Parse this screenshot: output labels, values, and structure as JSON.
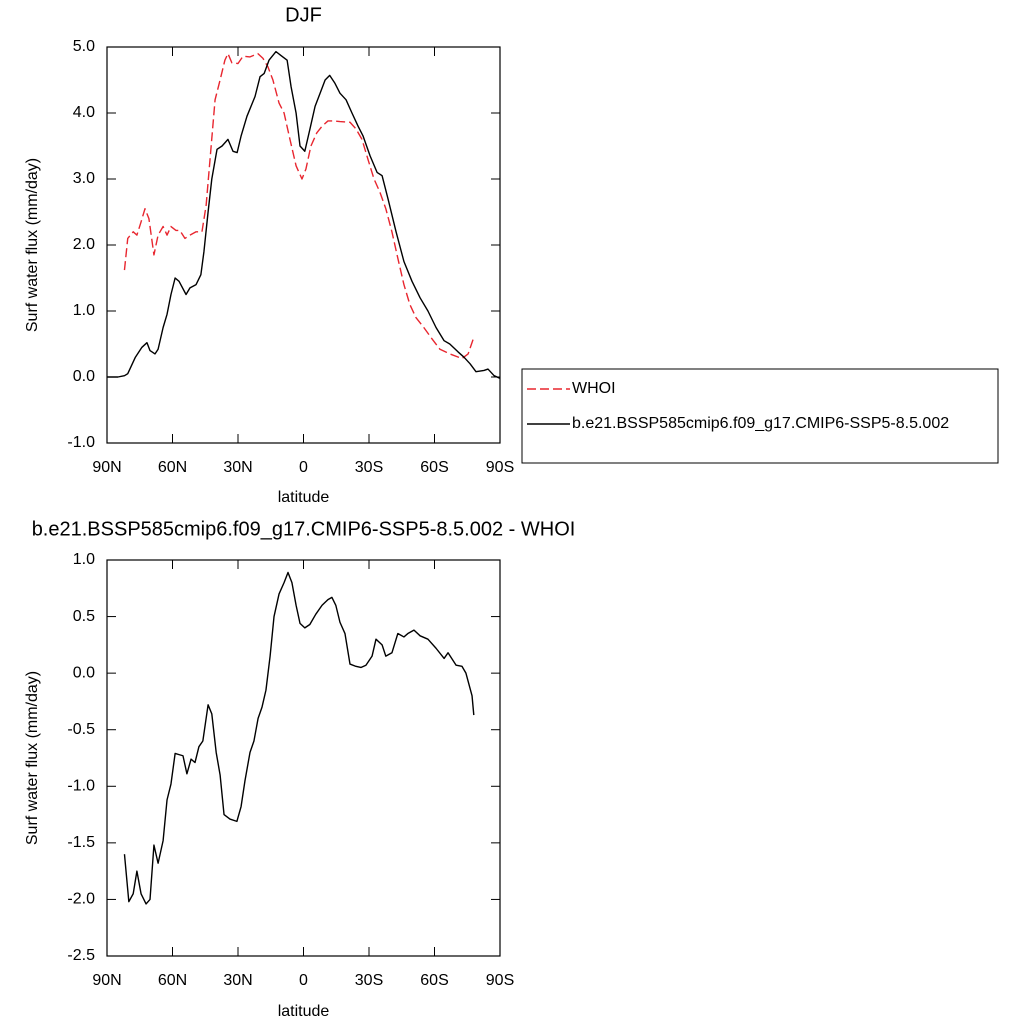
{
  "chart_data": [
    {
      "type": "line",
      "title": "DJF",
      "xlabel": "latitude",
      "ylabel": "Surf water flux (mm/day)",
      "xlim": [
        90,
        -90
      ],
      "xticks": [
        {
          "value": 90,
          "label": "90N"
        },
        {
          "value": 60,
          "label": "60N"
        },
        {
          "value": 30,
          "label": "30N"
        },
        0,
        {
          "value": -30,
          "label": "30S"
        },
        {
          "value": -60,
          "label": "60S"
        },
        {
          "value": -90,
          "label": "90S"
        }
      ],
      "ylim": [
        -1,
        5
      ],
      "yticks": [
        {
          "value": 5,
          "label": "5.0"
        },
        {
          "value": 4,
          "label": "4.0"
        },
        {
          "value": 3,
          "label": "3.0"
        },
        {
          "value": 2,
          "label": "2.0"
        },
        {
          "value": 1,
          "label": "1.0"
        },
        {
          "value": 0,
          "label": "0.0"
        },
        {
          "value": -1,
          "label": "-1.0"
        }
      ],
      "legend": "right",
      "series": [
        {
          "name": "WHOI",
          "color": "#e8262f",
          "dashed": true,
          "x": [
            82,
            80.5,
            78,
            76.3,
            74.4,
            72.6,
            70.8,
            68.5,
            66.6,
            64.3,
            62.5,
            60.7,
            58.4,
            56.6,
            54.3,
            52,
            49.2,
            46.5,
            44.6,
            42.8,
            40.5,
            38.2,
            36,
            34.6,
            32.8,
            30,
            27.7,
            24.5,
            20.9,
            18.6,
            16.3,
            14,
            11.2,
            8.9,
            6.2,
            3.4,
            0.7,
            -1.1,
            -3.4,
            -6.1,
            -8.5,
            -11.2,
            -13.9,
            -16.7,
            -21.3,
            -24,
            -26.8,
            -29.5,
            -32.3,
            -35,
            -37.7,
            -40.5,
            -43.2,
            -46,
            -48.7,
            -51.5,
            -55.1,
            -58.8,
            -62.5,
            -67,
            -72.6,
            -75.4,
            -78
          ],
          "values": [
            1.62,
            2.1,
            2.2,
            2.15,
            2.35,
            2.55,
            2.4,
            1.85,
            2.15,
            2.28,
            2.15,
            2.28,
            2.22,
            2.22,
            2.1,
            2.15,
            2.2,
            2.2,
            2.6,
            3.3,
            4.2,
            4.5,
            4.8,
            4.9,
            4.76,
            4.75,
            4.86,
            4.85,
            4.9,
            4.83,
            4.7,
            4.5,
            4.15,
            4.0,
            3.6,
            3.2,
            3.0,
            3.15,
            3.5,
            3.7,
            3.8,
            3.88,
            3.88,
            3.87,
            3.86,
            3.76,
            3.6,
            3.3,
            3.0,
            2.8,
            2.55,
            2.2,
            1.8,
            1.4,
            1.1,
            0.9,
            0.75,
            0.58,
            0.42,
            0.35,
            0.28,
            0.35,
            0.6
          ]
        },
        {
          "name": "b.e21.BSSP585cmip6.f09_g17.CMIP6-SSP5-8.5.002",
          "color": "#000000",
          "dashed": false,
          "x": [
            90,
            85,
            82,
            80.5,
            77,
            74,
            71.7,
            70.3,
            68,
            66.6,
            64.3,
            62.5,
            60.7,
            58.8,
            57,
            53.8,
            52,
            49.2,
            47,
            45.6,
            43.7,
            42,
            39.6,
            37.3,
            34.6,
            32.3,
            30.4,
            28.6,
            25.9,
            22.2,
            19.9,
            18,
            15.8,
            12.6,
            10.3,
            7.5,
            5.7,
            3.4,
            1.6,
            -0.6,
            -2.9,
            -5.3,
            -7.6,
            -9.9,
            -12,
            -14.4,
            -16.7,
            -19.5,
            -22.2,
            -25,
            -27.3,
            -30.5,
            -33.7,
            -36,
            -38.7,
            -42.4,
            -46,
            -49.7,
            -53.4,
            -57,
            -60.7,
            -64.4,
            -67,
            -70.8,
            -73.5,
            -76.3,
            -79,
            -82.7,
            -84.5,
            -87.3,
            -90
          ],
          "values": [
            0,
            0,
            0.02,
            0.05,
            0.3,
            0.45,
            0.52,
            0.4,
            0.35,
            0.42,
            0.75,
            0.95,
            1.25,
            1.5,
            1.45,
            1.25,
            1.35,
            1.4,
            1.55,
            1.9,
            2.5,
            3.0,
            3.45,
            3.5,
            3.6,
            3.42,
            3.4,
            3.65,
            3.95,
            4.25,
            4.55,
            4.6,
            4.8,
            4.93,
            4.87,
            4.8,
            4.4,
            4.0,
            3.5,
            3.42,
            3.75,
            4.1,
            4.3,
            4.5,
            4.57,
            4.45,
            4.3,
            4.2,
            4.0,
            3.8,
            3.65,
            3.35,
            3.1,
            3.05,
            2.7,
            2.2,
            1.75,
            1.45,
            1.2,
            1.0,
            0.75,
            0.55,
            0.5,
            0.38,
            0.3,
            0.2,
            0.08,
            0.1,
            0.12,
            0.02,
            -0.02
          ]
        }
      ]
    },
    {
      "type": "line",
      "title": "b.e21.BSSP585cmip6.f09_g17.CMIP6-SSP5-8.5.002 - WHOI",
      "xlabel": "latitude",
      "ylabel": "Surf water flux (mm/day)",
      "xlim": [
        90,
        -90
      ],
      "xticks": [
        {
          "value": 90,
          "label": "90N"
        },
        {
          "value": 60,
          "label": "60N"
        },
        {
          "value": 30,
          "label": "30N"
        },
        0,
        {
          "value": -30,
          "label": "30S"
        },
        {
          "value": -60,
          "label": "60S"
        },
        {
          "value": -90,
          "label": "90S"
        }
      ],
      "ylim": [
        -2.5,
        1
      ],
      "yticks": [
        {
          "value": 1,
          "label": "1.0"
        },
        0.5,
        {
          "value": 0,
          "label": "0.0"
        },
        -0.5,
        {
          "value": -1,
          "label": "-1.0"
        },
        -1.5,
        {
          "value": -2,
          "label": "-2.0"
        },
        -2.5
      ],
      "color": "#000000",
      "x": [
        82,
        80,
        78,
        76.3,
        74.4,
        72.1,
        70.3,
        68.5,
        66.6,
        64.3,
        62.5,
        60.7,
        58.8,
        57,
        55.2,
        53.4,
        51.5,
        49.7,
        47.9,
        46.1,
        43.7,
        42,
        40,
        38.2,
        36.4,
        33.7,
        30.5,
        28.6,
        26.8,
        24.5,
        22.7,
        20.8,
        19,
        17.2,
        15.3,
        13.5,
        11.2,
        8.9,
        7.1,
        5.3,
        3.4,
        1.6,
        -0.6,
        -2.9,
        -5.6,
        -8.5,
        -11.2,
        -13,
        -14.8,
        -16.7,
        -19,
        -21.3,
        -24,
        -26.3,
        -28.6,
        -31.4,
        -33.2,
        -36,
        -37.7,
        -40.5,
        -43.2,
        -46,
        -47.8,
        -50.6,
        -53.4,
        -57,
        -60.7,
        -64.4,
        -66.2,
        -69.9,
        -72.6,
        -74.4,
        -77.2,
        -78
      ],
      "values": [
        -1.6,
        -2.02,
        -1.95,
        -1.75,
        -1.95,
        -2.04,
        -2.0,
        -1.52,
        -1.68,
        -1.48,
        -1.12,
        -0.98,
        -0.71,
        -0.72,
        -0.73,
        -0.89,
        -0.76,
        -0.79,
        -0.65,
        -0.6,
        -0.28,
        -0.36,
        -0.7,
        -0.9,
        -1.25,
        -1.29,
        -1.31,
        -1.18,
        -0.95,
        -0.7,
        -0.6,
        -0.4,
        -0.3,
        -0.15,
        0.15,
        0.5,
        0.7,
        0.8,
        0.89,
        0.8,
        0.6,
        0.44,
        0.4,
        0.43,
        0.52,
        0.6,
        0.65,
        0.67,
        0.6,
        0.45,
        0.35,
        0.08,
        0.06,
        0.05,
        0.07,
        0.15,
        0.3,
        0.25,
        0.15,
        0.18,
        0.35,
        0.32,
        0.35,
        0.38,
        0.33,
        0.3,
        0.22,
        0.13,
        0.18,
        0.07,
        0.06,
        0,
        -0.2,
        -0.37
      ]
    }
  ]
}
